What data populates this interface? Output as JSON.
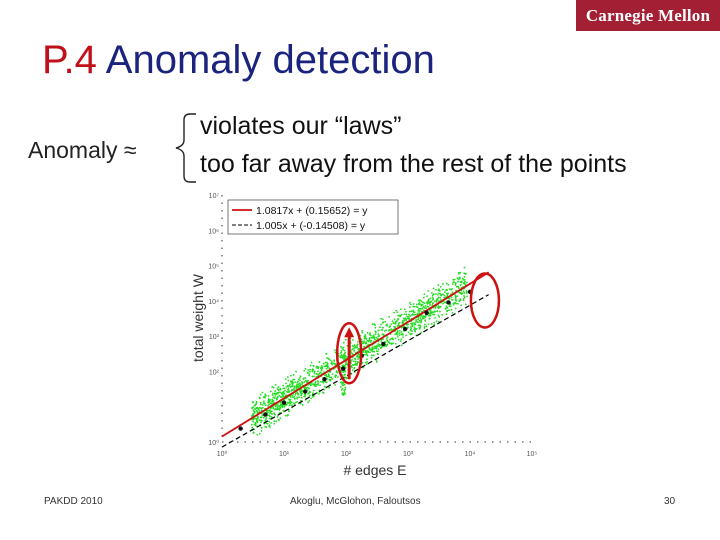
{
  "header": {
    "logo_text": "Carnegie Mellon"
  },
  "slide": {
    "title_number": "P.4",
    "title_text": "Anomaly detection",
    "anomaly_label": "Anomaly ≈",
    "reasons": [
      "violates our “laws”",
      "too far away from the rest of the points"
    ]
  },
  "footer": {
    "left": "PAKDD 2010",
    "center": "Akoglu, McGlohon, Faloutsos",
    "right": "30"
  },
  "colors": {
    "fit_line": "#d01010",
    "scatter": "#22dd22",
    "markers": "#111111",
    "highlight": "#cc1111"
  },
  "chart_data": {
    "type": "scatter",
    "xlabel": "# edges E",
    "ylabel": "total weight W",
    "xscale": "log",
    "yscale": "log",
    "x_ticks": [
      "10⁰",
      "10¹",
      "10²",
      "10³",
      "10⁴",
      "10⁵"
    ],
    "y_ticks": [
      "10⁰",
      "10²",
      "10³",
      "10⁴",
      "10⁵",
      "10⁶",
      "10⁷"
    ],
    "xlim": [
      1,
      100000
    ],
    "ylim": [
      1,
      10000000
    ],
    "legend_position": "top-left",
    "series": [
      {
        "name": "1.0817x + (0.15652) = y",
        "kind": "fit",
        "style": "solid",
        "slope": 1.0817,
        "intercept": 0.15652,
        "x_range": [
          1,
          20000
        ]
      },
      {
        "name": "1.005x + (-0.14508) = y",
        "kind": "fit",
        "style": "dashed",
        "slope": 1.005,
        "intercept": -0.14508,
        "x_range": [
          1,
          20000
        ]
      },
      {
        "kind": "binned_points",
        "points": [
          [
            2,
            2.4
          ],
          [
            5,
            6
          ],
          [
            10,
            13
          ],
          [
            22,
            27
          ],
          [
            45,
            60
          ],
          [
            90,
            120
          ],
          [
            180,
            280
          ],
          [
            400,
            600
          ],
          [
            900,
            1600
          ],
          [
            2000,
            4600
          ],
          [
            4500,
            9000
          ],
          [
            10000,
            18000
          ]
        ]
      }
    ],
    "highlights": [
      {
        "x": 90,
        "y": 150,
        "label": "violates laws"
      },
      {
        "x": 15000,
        "y": 9000,
        "label": "far from rest"
      }
    ]
  }
}
